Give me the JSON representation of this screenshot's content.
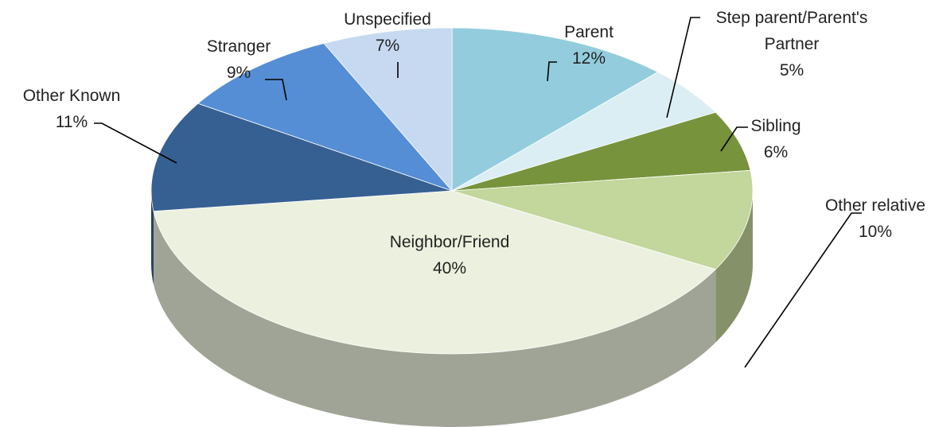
{
  "chart_data": {
    "type": "pie",
    "categories": [
      "Parent",
      "Step parent/Parent's Partner",
      "Sibling",
      "Other relative",
      "Neighbor/Friend",
      "Other Known",
      "Stranger",
      "Unspecified"
    ],
    "values": [
      12,
      5,
      6,
      10,
      40,
      11,
      9,
      7
    ],
    "value_labels": [
      "12%",
      "5%",
      "6%",
      "10%",
      "40%",
      "11%",
      "9%",
      "7%"
    ],
    "colors": [
      "#93cddd",
      "#dbeef4",
      "#77933c",
      "#c3d69b",
      "#ebf1de",
      "#366092",
      "#558ed5",
      "#c6d9f1"
    ]
  }
}
